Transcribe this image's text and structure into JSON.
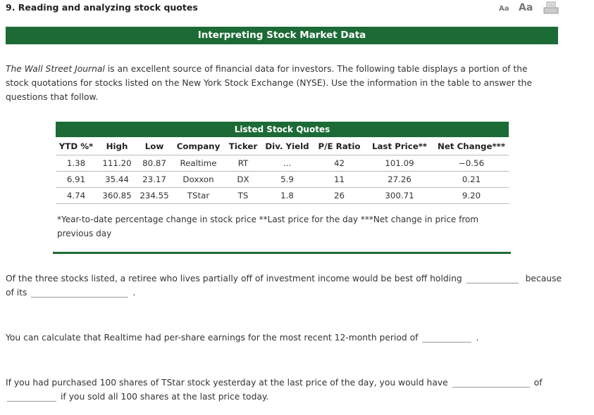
{
  "header": {
    "title": "9. Reading and analyzing stock quotes",
    "font_small": "Aa",
    "font_large": "Aa"
  },
  "banner": "Interpreting Stock Market Data",
  "intro": {
    "source": "The Wall Street Journal",
    "text": "is an excellent source of financial data for investors. The following table displays a portion of the stock quotations for stocks listed on the New York Stock Exchange (NYSE). Use the information in the table to answer the questions that follow."
  },
  "table": {
    "caption": "Listed Stock Quotes",
    "columns": [
      "YTD %*",
      "High",
      "Low",
      "Company",
      "Ticker",
      "Div. Yield",
      "P/E Ratio",
      "Last Price**",
      "Net Change***"
    ],
    "rows": [
      [
        "1.38",
        "111.20",
        "80.87",
        "Realtime",
        "RT",
        "...",
        "42",
        "101.09",
        "−0.56"
      ],
      [
        "6.91",
        "35.44",
        "23.17",
        "Doxxon",
        "DX",
        "5.9",
        "11",
        "27.26",
        "0.21"
      ],
      [
        "4.74",
        "360.85",
        "234.55",
        "TStar",
        "TS",
        "1.8",
        "26",
        "300.71",
        "9.20"
      ]
    ],
    "footnote": "*Year-to-date percentage change in stock price **Last price for the day ***Net change in price from previous day"
  },
  "questions": [
    {
      "text_1": "Of the three stocks listed, a retiree who lives partially off of investment income would be best off holding",
      "text_2": "because",
      "text_3": "of its",
      "text_4": "."
    },
    {
      "text_1": "You can calculate that Realtime had per-share earnings for the most recent 12-month period of",
      "text_2": "."
    },
    {
      "text_1": "If you had purchased 100 shares of TStar stock yesterday at the last price of the day, you would have",
      "text_2": "of",
      "text_3": "if you sold all 100 shares at the last price today."
    }
  ]
}
